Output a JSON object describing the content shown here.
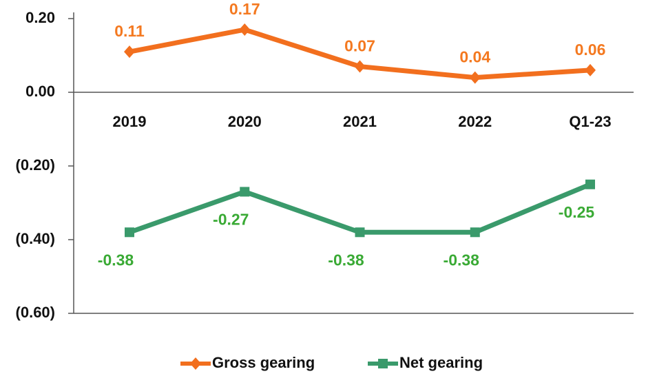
{
  "chart_data": {
    "type": "line",
    "categories": [
      "2019",
      "2020",
      "2021",
      "2022",
      "Q1-23"
    ],
    "series": [
      {
        "name": "Gross gearing",
        "color": "#f26f1e",
        "label_color": "#f47920",
        "marker": "diamond",
        "values": [
          0.11,
          0.17,
          0.07,
          0.04,
          0.06
        ]
      },
      {
        "name": "Net gearing",
        "color": "#3a9a6b",
        "label_color": "#3aaa35",
        "marker": "square",
        "values": [
          -0.38,
          -0.27,
          -0.38,
          -0.38,
          -0.25
        ]
      }
    ],
    "ylim": [
      -0.6,
      0.2
    ],
    "yticks": [
      {
        "value": 0.2,
        "label": "0.20"
      },
      {
        "value": 0,
        "label": "0.00"
      },
      {
        "value": -0.2,
        "label": "(0.20)"
      },
      {
        "value": -0.4,
        "label": "(0.40)"
      },
      {
        "value": -0.6,
        "label": "(0.60)"
      }
    ],
    "legend": "bottom"
  }
}
